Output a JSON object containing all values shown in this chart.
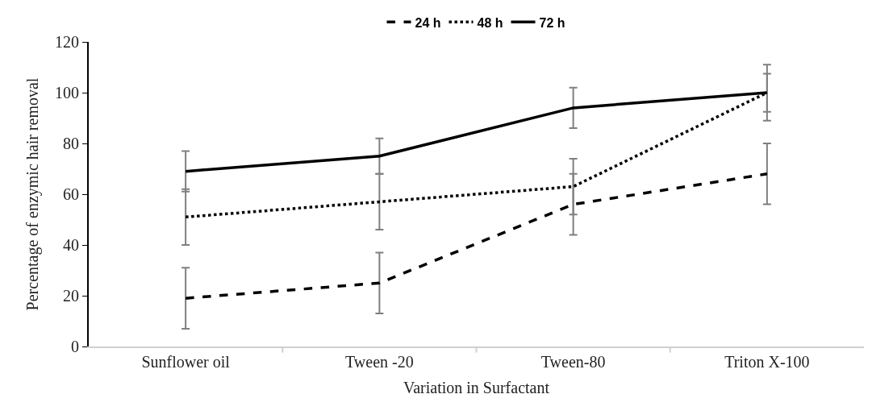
{
  "chart_data": {
    "type": "line",
    "xlabel": "Variation in Surfactant",
    "ylabel": "Percentage of enzymic hair removal",
    "categories": [
      "Sunflower oil",
      "Tween -20",
      "Tween-80",
      "Triton X-100"
    ],
    "series": [
      {
        "name": "24 h",
        "color": "#000000",
        "line_style": "dashed",
        "values": [
          19,
          25,
          56,
          68
        ],
        "errors": [
          12,
          12,
          12,
          12
        ]
      },
      {
        "name": "48 h",
        "color": "#000000",
        "line_style": "dotted",
        "values": [
          51,
          57,
          63,
          100
        ],
        "errors": [
          11,
          11,
          11,
          7.5
        ]
      },
      {
        "name": "72 h",
        "color": "#000000",
        "line_style": "solid",
        "values": [
          69,
          75,
          94,
          100
        ],
        "errors": [
          8,
          7,
          8,
          11
        ]
      }
    ],
    "ylim": [
      0,
      120
    ],
    "yticks": [
      0,
      20,
      40,
      60,
      80,
      100,
      120
    ],
    "legend": "top",
    "marker": "none"
  }
}
